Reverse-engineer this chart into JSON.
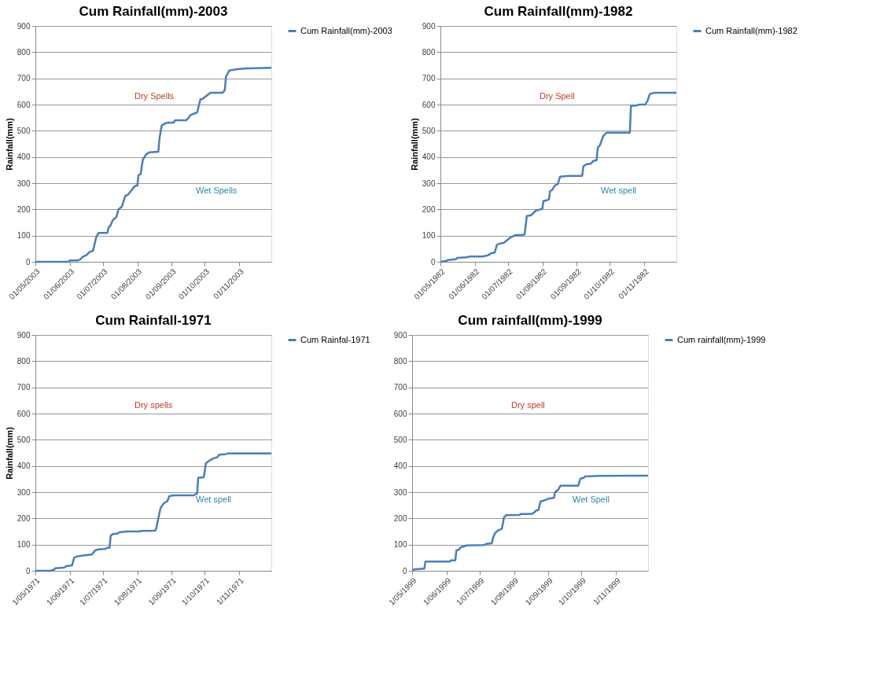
{
  "chart_data": [
    {
      "type": "line",
      "title": "Cum Rainfall(mm)-2003",
      "ylabel": "Rainfall(mm)",
      "legend": "right",
      "grid": "y",
      "xlim": [
        "2003-05-01",
        "2003-11-30"
      ],
      "ylim": [
        0,
        900
      ],
      "yticks": [
        0,
        100,
        200,
        300,
        400,
        500,
        600,
        700,
        800,
        900
      ],
      "xticks": [
        {
          "value": "2003-05-01",
          "label": "01/05/2003"
        },
        {
          "value": "2003-06-01",
          "label": "01/06/2003"
        },
        {
          "value": "2003-07-01",
          "label": "01/07/2003"
        },
        {
          "value": "2003-08-01",
          "label": "01/08/2003"
        },
        {
          "value": "2003-09-01",
          "label": "01/09/2003"
        },
        {
          "value": "2003-10-01",
          "label": "01/10/2003"
        },
        {
          "value": "2003-11-01",
          "label": "01/11/2003"
        }
      ],
      "x": [
        "2003-05-01",
        "2003-05-31",
        "2003-06-01",
        "2003-06-08",
        "2003-06-10",
        "2003-06-13",
        "2003-06-16",
        "2003-06-19",
        "2003-06-22",
        "2003-06-25",
        "2003-06-27",
        "2003-07-05",
        "2003-07-06",
        "2003-07-08",
        "2003-07-10",
        "2003-07-13",
        "2003-07-15",
        "2003-07-18",
        "2003-07-21",
        "2003-07-24",
        "2003-07-28",
        "2003-07-30",
        "2003-08-01",
        "2003-08-02",
        "2003-08-04",
        "2003-08-06",
        "2003-08-09",
        "2003-08-12",
        "2003-08-20",
        "2003-08-21",
        "2003-08-23",
        "2003-08-27",
        "2003-09-03",
        "2003-09-04",
        "2003-09-14",
        "2003-09-16",
        "2003-09-18",
        "2003-09-24",
        "2003-09-27",
        "2003-09-29",
        "2003-10-03",
        "2003-10-06",
        "2003-10-17",
        "2003-10-19",
        "2003-10-20",
        "2003-10-23",
        "2003-10-26",
        "2003-10-30",
        "2003-11-08",
        "2003-11-30"
      ],
      "series": [
        {
          "name": "Cum Rainfall(mm)-2003",
          "color": "#4a7ebb",
          "values": [
            0,
            0,
            5,
            5,
            8,
            20,
            25,
            38,
            42,
            95,
            110,
            110,
            130,
            140,
            160,
            170,
            200,
            210,
            250,
            258,
            280,
            290,
            290,
            330,
            335,
            390,
            410,
            418,
            420,
            470,
            520,
            530,
            532,
            540,
            540,
            548,
            560,
            570,
            620,
            622,
            635,
            645,
            645,
            655,
            705,
            730,
            732,
            735,
            738,
            740
          ]
        }
      ],
      "annotations": [
        "Dry Spells",
        "Wet Spells"
      ]
    },
    {
      "type": "line",
      "title": "Cum Rainfall(mm)-1982",
      "ylabel": "Rainfall(mm)",
      "legend": "right",
      "grid": "y",
      "xlim": [
        "1982-05-01",
        "1982-11-30"
      ],
      "ylim": [
        0,
        900
      ],
      "yticks": [
        0,
        100,
        200,
        300,
        400,
        500,
        600,
        700,
        800,
        900
      ],
      "xticks": [
        {
          "value": "1982-05-01",
          "label": "01/05/1982"
        },
        {
          "value": "1982-06-01",
          "label": "01/06/1982"
        },
        {
          "value": "1982-07-01",
          "label": "01/07/1982"
        },
        {
          "value": "1982-08-01",
          "label": "01/08/1982"
        },
        {
          "value": "1982-09-01",
          "label": "01/09/1982"
        },
        {
          "value": "1982-10-01",
          "label": "01/10/1982"
        },
        {
          "value": "1982-11-01",
          "label": "01/11/1982"
        }
      ],
      "x": [
        "1982-05-01",
        "1982-05-06",
        "1982-05-08",
        "1982-05-15",
        "1982-05-16",
        "1982-05-25",
        "1982-05-27",
        "1982-06-08",
        "1982-06-13",
        "1982-06-16",
        "1982-06-19",
        "1982-06-21",
        "1982-06-24",
        "1982-06-27",
        "1982-06-30",
        "1982-07-04",
        "1982-07-08",
        "1982-07-14",
        "1982-07-16",
        "1982-07-18",
        "1982-07-22",
        "1982-07-26",
        "1982-07-30",
        "1982-08-01",
        "1982-08-02",
        "1982-08-05",
        "1982-08-07",
        "1982-08-08",
        "1982-08-10",
        "1982-08-12",
        "1982-08-15",
        "1982-08-17",
        "1982-08-24",
        "1982-09-06",
        "1982-09-07",
        "1982-09-10",
        "1982-09-14",
        "1982-09-16",
        "1982-09-19",
        "1982-09-20",
        "1982-09-22",
        "1982-09-25",
        "1982-09-28",
        "1982-10-19",
        "1982-10-20",
        "1982-10-25",
        "1982-10-28",
        "1982-11-02",
        "1982-11-04",
        "1982-11-06",
        "1982-11-10",
        "1982-11-30"
      ],
      "series": [
        {
          "name": "Cum Rainfall(mm)-1982",
          "color": "#4a7ebb",
          "values": [
            0,
            3,
            7,
            10,
            15,
            17,
            20,
            20,
            25,
            33,
            35,
            65,
            70,
            72,
            82,
            95,
            102,
            102,
            105,
            175,
            178,
            195,
            200,
            202,
            232,
            235,
            238,
            270,
            275,
            290,
            297,
            325,
            328,
            328,
            365,
            372,
            375,
            385,
            388,
            435,
            445,
            480,
            493,
            493,
            595,
            597,
            600,
            600,
            615,
            640,
            645,
            645
          ]
        }
      ],
      "annotations": [
        "Dry Spell",
        "Wet spell"
      ]
    },
    {
      "type": "line",
      "title": "Cum Rainfall-1971",
      "ylabel": "Rainfall(mm)",
      "legend": "right",
      "grid": "y",
      "xlim": [
        "1971-05-01",
        "1971-11-30"
      ],
      "ylim": [
        0,
        900
      ],
      "yticks": [
        0,
        100,
        200,
        300,
        400,
        500,
        600,
        700,
        800,
        900
      ],
      "xticks": [
        {
          "value": "1971-05-01",
          "label": "1/05/1971"
        },
        {
          "value": "1971-06-01",
          "label": "1/06/1971"
        },
        {
          "value": "1971-07-01",
          "label": "1/07/1971"
        },
        {
          "value": "1971-08-01",
          "label": "1/08/1971"
        },
        {
          "value": "1971-09-01",
          "label": "1/09/1971"
        },
        {
          "value": "1971-10-01",
          "label": "1/10/1971"
        },
        {
          "value": "1971-11-01",
          "label": "1/11/1971"
        }
      ],
      "x": [
        "1971-05-01",
        "1971-05-15",
        "1971-05-18",
        "1971-05-19",
        "1971-05-27",
        "1971-05-29",
        "1971-06-03",
        "1971-06-05",
        "1971-06-08",
        "1971-06-12",
        "1971-06-17",
        "1971-06-21",
        "1971-06-24",
        "1971-06-27",
        "1971-07-03",
        "1971-07-05",
        "1971-07-07",
        "1971-07-08",
        "1971-07-10",
        "1971-07-14",
        "1971-07-16",
        "1971-07-22",
        "1971-08-03",
        "1971-08-05",
        "1971-08-17",
        "1971-08-18",
        "1971-08-20",
        "1971-08-22",
        "1971-08-25",
        "1971-08-28",
        "1971-08-30",
        "1971-09-03",
        "1971-09-21",
        "1971-09-24",
        "1971-09-25",
        "1971-09-30",
        "1971-10-02",
        "1971-10-05",
        "1971-10-08",
        "1971-10-12",
        "1971-10-14",
        "1971-10-20",
        "1971-10-22",
        "1971-11-30"
      ],
      "series": [
        {
          "name": "Cum Rainfal-1971",
          "color": "#4a7ebb",
          "values": [
            0,
            0,
            5,
            10,
            12,
            18,
            20,
            50,
            55,
            58,
            60,
            62,
            78,
            82,
            83,
            88,
            88,
            135,
            140,
            142,
            147,
            150,
            150,
            152,
            153,
            160,
            200,
            240,
            258,
            265,
            285,
            288,
            288,
            295,
            355,
            357,
            410,
            420,
            428,
            433,
            443,
            445,
            448,
            448
          ]
        }
      ],
      "annotations": [
        "Dry spells",
        "Wet spell"
      ]
    },
    {
      "type": "line",
      "title": "Cum rainfall(mm)-1999",
      "legend": "right",
      "grid": "y",
      "xlim": [
        "1999-05-01",
        "1999-11-30"
      ],
      "ylim": [
        0,
        900
      ],
      "yticks": [
        0,
        100,
        200,
        300,
        400,
        500,
        600,
        700,
        800,
        900
      ],
      "xticks": [
        {
          "value": "1999-05-01",
          "label": "1/05/1999"
        },
        {
          "value": "1999-06-01",
          "label": "1/06/1999"
        },
        {
          "value": "1999-07-01",
          "label": "1/07/1999"
        },
        {
          "value": "1999-08-01",
          "label": "1/08/1999"
        },
        {
          "value": "1999-09-01",
          "label": "1/09/1999"
        },
        {
          "value": "1999-10-01",
          "label": "1/10/1999"
        },
        {
          "value": "1999-11-01",
          "label": "1/11/1999"
        }
      ],
      "x": [
        "1999-05-01",
        "1999-05-03",
        "1999-05-07",
        "1999-05-12",
        "1999-05-13",
        "1999-06-04",
        "1999-06-05",
        "1999-06-09",
        "1999-06-10",
        "1999-06-12",
        "1999-06-14",
        "1999-06-17",
        "1999-06-19",
        "1999-07-05",
        "1999-07-07",
        "1999-07-12",
        "1999-07-13",
        "1999-07-15",
        "1999-07-18",
        "1999-07-21",
        "1999-07-23",
        "1999-07-25",
        "1999-08-06",
        "1999-08-07",
        "1999-08-17",
        "1999-08-19",
        "1999-08-21",
        "1999-08-23",
        "1999-08-25",
        "1999-08-28",
        "1999-09-01",
        "1999-09-06",
        "1999-09-07",
        "1999-09-10",
        "1999-09-12",
        "1999-09-28",
        "1999-09-30",
        "1999-10-03",
        "1999-10-04",
        "1999-10-18",
        "1999-11-30"
      ],
      "series": [
        {
          "name": "Cum rainfall(mm)-1999",
          "color": "#4a7ebb",
          "values": [
            3,
            5,
            7,
            8,
            35,
            35,
            40,
            40,
            78,
            80,
            90,
            93,
            97,
            98,
            103,
            105,
            125,
            145,
            155,
            160,
            205,
            212,
            213,
            217,
            217,
            222,
            230,
            232,
            265,
            268,
            275,
            278,
            300,
            310,
            325,
            325,
            352,
            355,
            360,
            362,
            363
          ]
        }
      ],
      "annotations": [
        "Dry spell",
        "Wet Spell"
      ]
    }
  ]
}
